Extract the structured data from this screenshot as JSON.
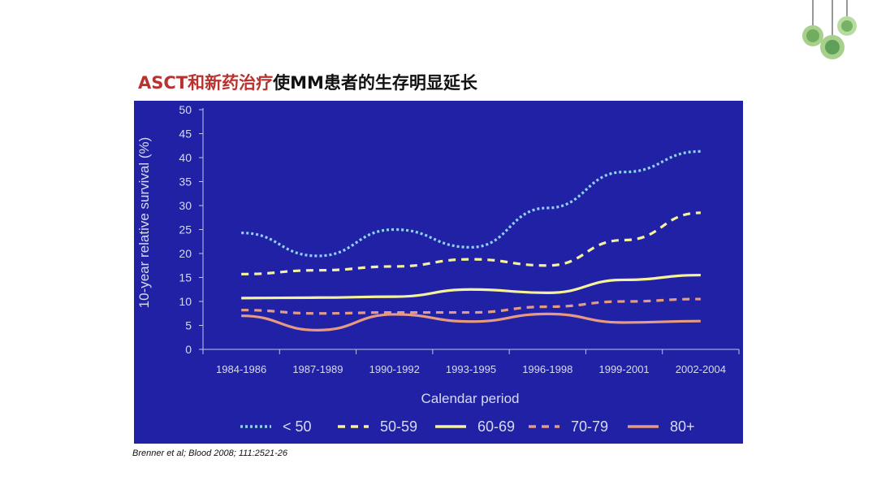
{
  "slide": {
    "title_red": "ASCT和新药治疗",
    "title_black": "使MM患者的生存明显延长",
    "citation": "Brenner et al; Blood 2008; 111:2521-26"
  },
  "colors": {
    "background": "#2121a6",
    "axis": "#bfc6e6",
    "s_lt50": "#8fd3f1",
    "s_50_59": "#f6f29b",
    "s_60_69": "#f6f29b",
    "s_70_79": "#e69a82",
    "s_80plus": "#e69a82",
    "title_red": "#b8322f"
  },
  "chart_data": {
    "type": "line",
    "title": "",
    "xlabel": "Calendar period",
    "ylabel": "10-year relative survival (%)",
    "ylim": [
      0,
      50
    ],
    "yticks": [
      0,
      5,
      10,
      15,
      20,
      25,
      30,
      35,
      40,
      45,
      50
    ],
    "categories": [
      "1984-1986",
      "1987-1989",
      "1990-1992",
      "1993-1995",
      "1996-1998",
      "1999-2001",
      "2002-2004"
    ],
    "grid": false,
    "legend_position": "bottom",
    "series": [
      {
        "name": "< 50",
        "style": "dotted",
        "color": "#8fd3f1",
        "values": [
          24.3,
          19.5,
          25.0,
          21.3,
          29.5,
          37.0,
          41.3
        ]
      },
      {
        "name": "50-59",
        "style": "dashed",
        "color": "#f6f29b",
        "values": [
          15.7,
          16.5,
          17.3,
          18.8,
          17.5,
          22.8,
          28.5
        ]
      },
      {
        "name": "60-69",
        "style": "solid",
        "color": "#f6f29b",
        "values": [
          10.7,
          10.8,
          11.0,
          12.5,
          11.8,
          14.5,
          15.5
        ]
      },
      {
        "name": "70-79",
        "style": "dashed",
        "color": "#e69a82",
        "values": [
          8.2,
          7.5,
          7.7,
          7.7,
          8.9,
          10.0,
          10.5
        ]
      },
      {
        "name": "80+",
        "style": "solid",
        "color": "#e69a82",
        "values": [
          7.0,
          4.0,
          7.3,
          5.8,
          7.4,
          5.6,
          5.9
        ]
      }
    ]
  }
}
